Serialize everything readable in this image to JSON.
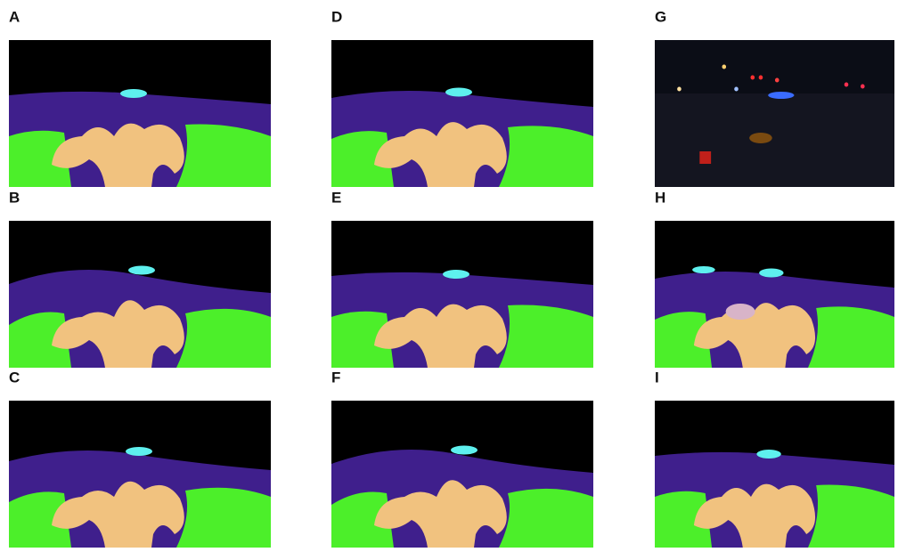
{
  "panels": [
    {
      "label": "A"
    },
    {
      "label": "D"
    },
    {
      "label": "G"
    },
    {
      "label": "B"
    },
    {
      "label": "E"
    },
    {
      "label": "H"
    },
    {
      "label": "C"
    },
    {
      "label": "F"
    },
    {
      "label": "I"
    }
  ]
}
